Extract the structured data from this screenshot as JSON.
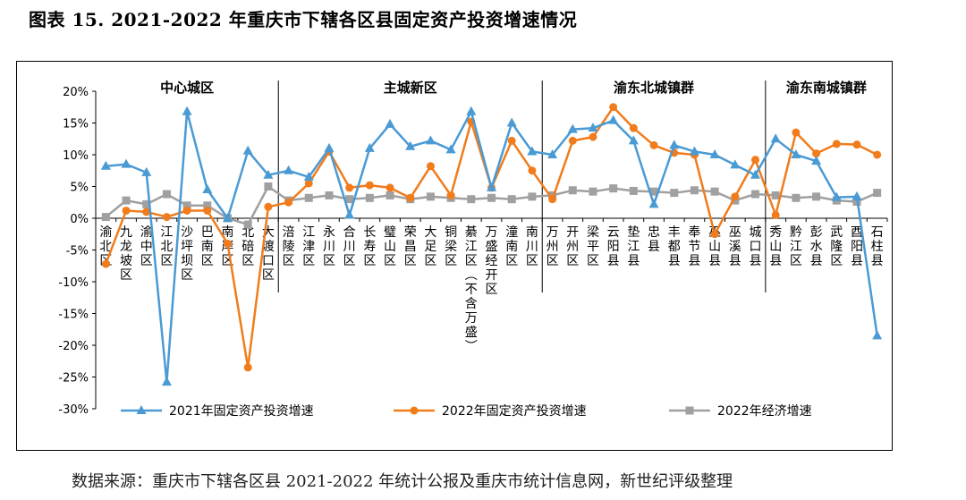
{
  "page": {
    "title": "图表 15. 2021-2022 年重庆市下辖各区县固定资产投资增速情况",
    "source": "数据来源：重庆市下辖各区县 2021-2022 年统计公报及重庆市统计信息网，新世纪评级整理"
  },
  "chart_data": {
    "type": "line",
    "y_ticks": [
      "20%",
      "15%",
      "10%",
      "5%",
      "0%",
      "-5%",
      "-10%",
      "-15%",
      "-20%",
      "-25%",
      "-30%"
    ],
    "ylim": [
      -30,
      20
    ],
    "grid": false,
    "legend_position": "bottom",
    "regions": [
      {
        "name": "中心城区",
        "start": 0,
        "end": 8
      },
      {
        "name": "主城新区",
        "start": 9,
        "end": 21
      },
      {
        "name": "渝东北城镇群",
        "start": 22,
        "end": 32
      },
      {
        "name": "渝东南城镇群",
        "start": 33,
        "end": 38
      }
    ],
    "categories": [
      "渝北区",
      "九龙坡区",
      "渝中区",
      "江北区",
      "沙坪坝区",
      "巴南区",
      "南岸区",
      "北碚区",
      "大渡口区",
      "涪陵区",
      "江津区",
      "永川区",
      "合川区",
      "长寿区",
      "璧山区",
      "荣昌区",
      "大足区",
      "铜梁区",
      "綦江区(不含万盛)",
      "万盛经开区",
      "潼南区",
      "南川区",
      "万州区",
      "开州区",
      "梁平区",
      "云阳县",
      "垫江县",
      "忠县",
      "丰都县",
      "奉节县",
      "巫山县",
      "巫溪县",
      "城口县",
      "秀山县",
      "黔江区",
      "彭水县",
      "武隆区",
      "酉阳县",
      "石柱县"
    ],
    "series": [
      {
        "name": "2021年固定资产投资增速",
        "color": "#4a9ad4",
        "marker": "triangle",
        "values": [
          8.2,
          8.5,
          7.2,
          -25.8,
          16.8,
          4.5,
          0.0,
          10.6,
          6.8,
          7.5,
          6.5,
          11.0,
          0.5,
          11.0,
          14.8,
          11.3,
          12.2,
          10.8,
          16.8,
          4.8,
          15.0,
          10.5,
          10.0,
          14.0,
          14.2,
          15.4,
          12.2,
          2.2,
          11.5,
          10.5,
          10.0,
          8.4,
          6.8,
          12.5,
          10.0,
          9.0,
          3.3,
          3.4,
          -18.5
        ]
      },
      {
        "name": "2022年固定资产投资增速",
        "color": "#f07c1c",
        "marker": "circle",
        "values": [
          -7.2,
          1.2,
          1.0,
          0.2,
          1.2,
          1.2,
          -4.0,
          -23.5,
          1.8,
          2.5,
          5.5,
          10.5,
          4.8,
          5.2,
          4.8,
          3.2,
          8.2,
          3.6,
          15.2,
          4.8,
          12.2,
          7.5,
          3.0,
          12.2,
          12.8,
          17.5,
          14.2,
          11.5,
          10.3,
          10.0,
          -2.5,
          3.4,
          9.2,
          0.5,
          13.5,
          10.2,
          11.7,
          11.6,
          10.0
        ]
      },
      {
        "name": "2022年经济增速",
        "color": "#a0a0a0",
        "marker": "square",
        "values": [
          0.2,
          2.8,
          2.2,
          3.8,
          2.0,
          2.0,
          0.0,
          -1.0,
          5.0,
          2.8,
          3.2,
          3.6,
          3.0,
          3.2,
          3.6,
          3.0,
          3.4,
          3.2,
          3.0,
          3.2,
          3.0,
          3.4,
          3.6,
          4.4,
          4.2,
          4.7,
          4.3,
          4.2,
          4.0,
          4.4,
          4.2,
          2.8,
          3.8,
          3.6,
          3.2,
          3.4,
          2.8,
          2.6,
          4.0
        ]
      }
    ]
  }
}
